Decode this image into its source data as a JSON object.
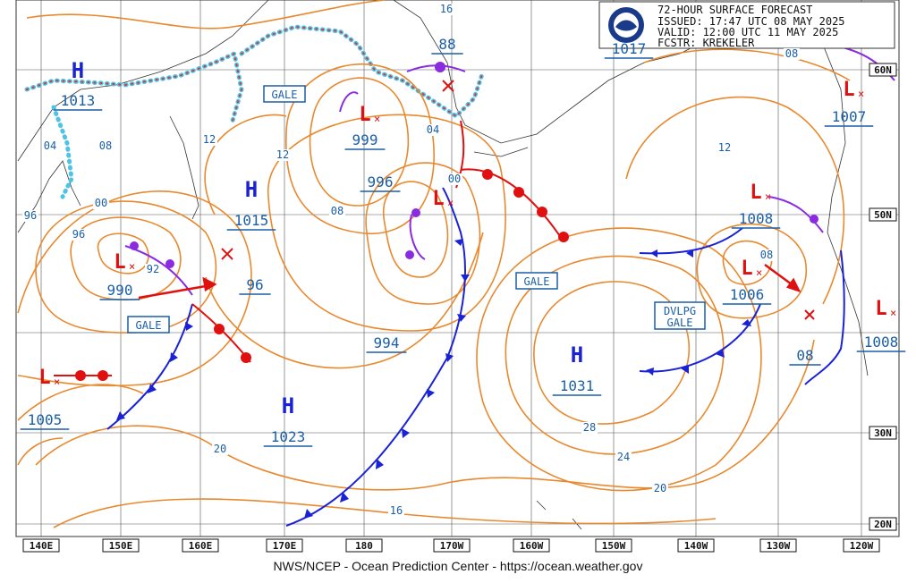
{
  "header": {
    "lines": [
      "72-HOUR SURFACE FORECAST",
      "ISSUED: 17:47 UTC 08 MAY 2025",
      "VALID:  12:00 UTC 11 MAY 2025",
      "FCSTR:  KREKELER"
    ]
  },
  "highs": [
    {
      "symbol": "H",
      "pressure": "1013"
    },
    {
      "symbol": "H",
      "pressure": "1015"
    },
    {
      "symbol": "H",
      "pressure": "1023"
    },
    {
      "symbol": "H",
      "pressure": "1031"
    }
  ],
  "lows": [
    {
      "symbol": "L",
      "pressure": "999"
    },
    {
      "symbol": "L",
      "pressure": "996"
    },
    {
      "symbol": "L",
      "pressure": "990"
    },
    {
      "symbol": "L",
      "pressure": "1005"
    },
    {
      "symbol": "L",
      "pressure": "1008"
    },
    {
      "symbol": "L",
      "pressure": "1006"
    },
    {
      "symbol": "L",
      "pressure": "1007"
    },
    {
      "symbol": "L",
      "pressure": "1008"
    }
  ],
  "other_pressures": [
    "1017",
    "88",
    "96",
    "994",
    "08"
  ],
  "isobar_labels": [
    "16",
    "04",
    "08",
    "12",
    "12",
    "08",
    "04",
    "00",
    "00",
    "96",
    "96",
    "92",
    "20",
    "28",
    "24",
    "20",
    "16",
    "12",
    "08",
    "08"
  ],
  "warnings": [
    "GALE",
    "GALE",
    "GALE",
    "DVLPG GALE"
  ],
  "longitudes": [
    "140E",
    "150E",
    "160E",
    "170E",
    "180",
    "170W",
    "160W",
    "150W",
    "140W",
    "130W",
    "120W"
  ],
  "latitudes": [
    "60N",
    "50N",
    "30N",
    "20N"
  ],
  "footer": "NWS/NCEP - Ocean Prediction Center - https://ocean.weather.gov"
}
